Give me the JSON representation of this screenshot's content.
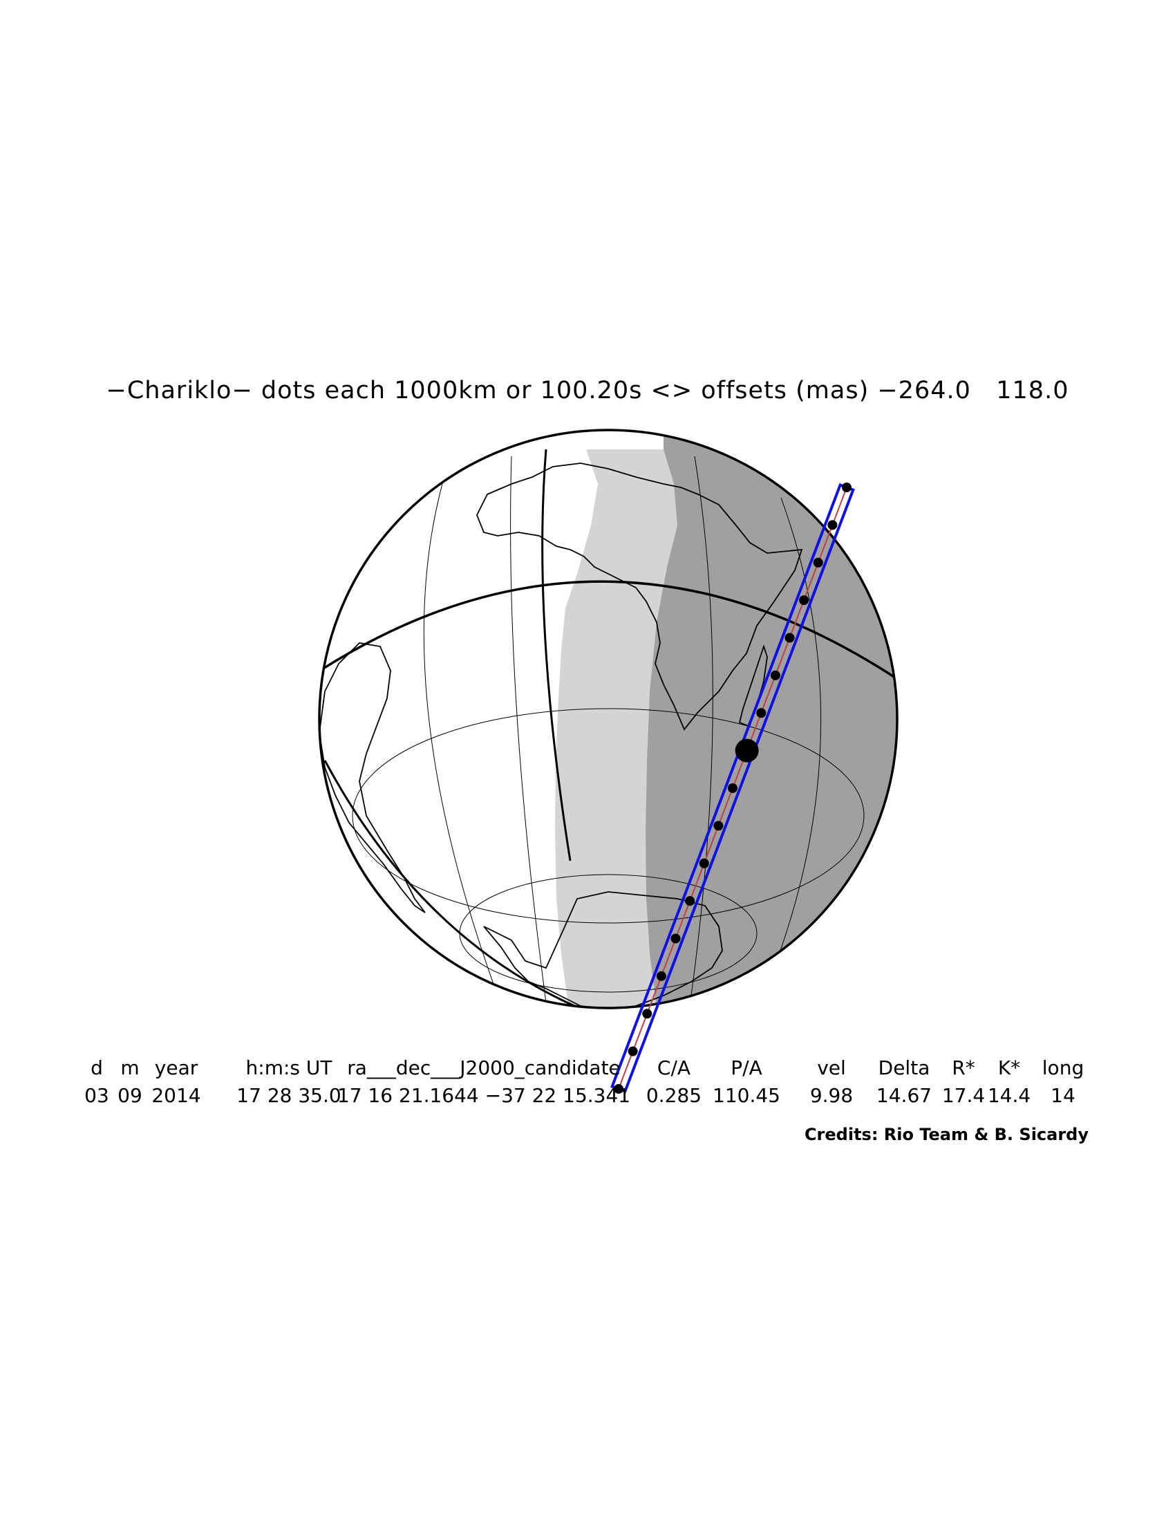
{
  "title": "−Chariklo− dots each 1000km or 100.20s <> offsets (mas) −264.0   118.0",
  "table": {
    "headers": [
      "d",
      "m",
      "year",
      "h:m:s UT",
      "ra___dec___J2000_candidate",
      "C/A",
      "P/A",
      "vel",
      "Delta",
      "R*",
      "K*",
      "long"
    ],
    "values": [
      "03",
      "09",
      "2014",
      "17 28 35.0",
      "17 16 21.1644 −37 22 15.341",
      "0.285",
      "110.45",
      "9.98",
      "14.67",
      "17.4",
      "14.4",
      "14"
    ]
  },
  "credits": "Credits: Rio Team & B. Sicardy",
  "colors": {
    "path": "#1010e6",
    "twilight": "#d4d4d4",
    "night": "#a0a0a0",
    "dots": "#000000"
  }
}
